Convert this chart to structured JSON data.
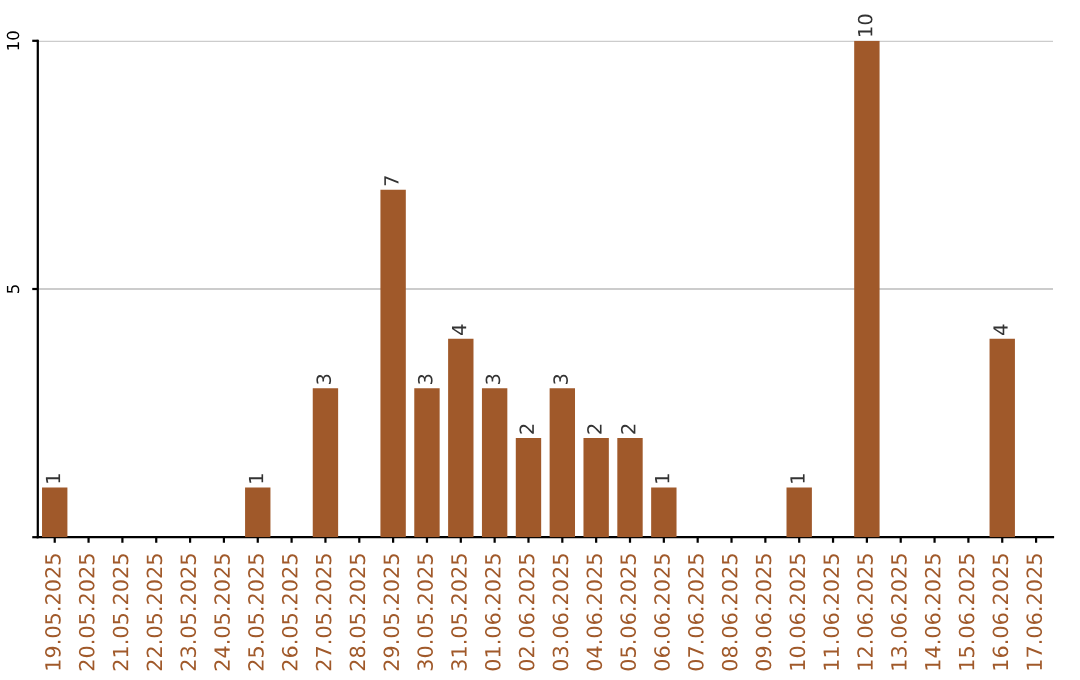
{
  "chart_data": {
    "type": "bar",
    "categories": [
      "19.05.2025",
      "20.05.2025",
      "21.05.2025",
      "22.05.2025",
      "23.05.2025",
      "24.05.2025",
      "25.05.2025",
      "26.05.2025",
      "27.05.2025",
      "28.05.2025",
      "29.05.2025",
      "30.05.2025",
      "31.05.2025",
      "01.06.2025",
      "02.06.2025",
      "03.06.2025",
      "04.06.2025",
      "05.06.2025",
      "06.06.2025",
      "07.06.2025",
      "08.06.2025",
      "09.06.2025",
      "10.06.2025",
      "11.06.2025",
      "12.06.2025",
      "13.06.2025",
      "14.06.2025",
      "15.06.2025",
      "16.06.2025",
      "17.06.2025"
    ],
    "values": [
      1,
      0,
      0,
      0,
      0,
      0,
      1,
      0,
      3,
      0,
      7,
      3,
      4,
      3,
      2,
      3,
      2,
      2,
      1,
      0,
      0,
      0,
      1,
      0,
      10,
      0,
      0,
      0,
      4,
      0
    ],
    "value_labels": [
      "1",
      null,
      null,
      null,
      null,
      null,
      "1",
      null,
      "3",
      null,
      "7",
      "3",
      "4",
      "3",
      "2",
      "3",
      "2",
      "2",
      "1",
      null,
      null,
      null,
      "1",
      null,
      "10",
      null,
      null,
      null,
      "4",
      null
    ],
    "color": "#a0592a",
    "ylim": [
      0,
      10
    ],
    "yticks": [
      {
        "value": 0,
        "label": null
      },
      5,
      10
    ],
    "grid": "y"
  }
}
